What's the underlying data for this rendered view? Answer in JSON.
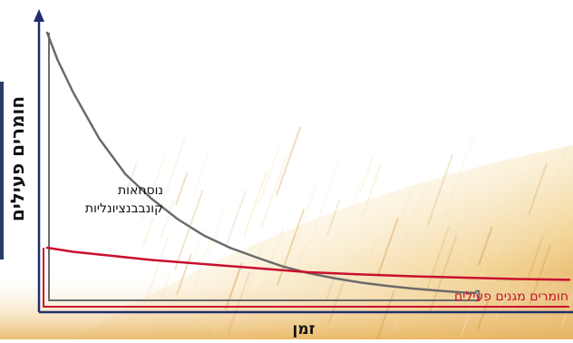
{
  "chart_data": {
    "type": "line",
    "title": "",
    "xlabel": "זמן",
    "ylabel": "חומרים פעילים",
    "xlim": [
      0,
      100
    ],
    "ylim": [
      0,
      100
    ],
    "grid": false,
    "legend": "none",
    "series": [
      {
        "name": "נוסחאות קונבנציונליות",
        "color": "#6b6b6b",
        "x": [
          0,
          2,
          5,
          10,
          15,
          20,
          25,
          30,
          35,
          40,
          45,
          50,
          55,
          60,
          65,
          70,
          75,
          80,
          82
        ],
        "y": [
          98,
          88,
          76,
          59,
          46,
          37,
          29.5,
          23.5,
          19,
          15.5,
          12.2,
          9.7,
          7.8,
          6.2,
          5,
          4,
          3.2,
          2.5,
          2.4
        ]
      },
      {
        "name": "חומרים מגנים פעילים",
        "color": "#c8102e",
        "x": [
          0,
          5,
          10,
          20,
          30,
          40,
          50,
          60,
          70,
          80,
          90,
          100
        ],
        "y": [
          19,
          17.5,
          16.5,
          14.5,
          13,
          11.5,
          10,
          9.2,
          8.5,
          8,
          7.5,
          7.2
        ]
      }
    ],
    "series_labels": [
      {
        "lines": [
          "נוסחאות",
          "קונבבנציונליות"
        ]
      },
      {
        "lines": [
          "חומרים מגנים פעילים"
        ]
      }
    ]
  },
  "colors": {
    "axis": "#1f2f6e",
    "gray_series": "#6b6b6b",
    "red_series": "#c8102e",
    "wheat_light": "#f6e3b4",
    "wheat_dark": "#c98a2c"
  }
}
